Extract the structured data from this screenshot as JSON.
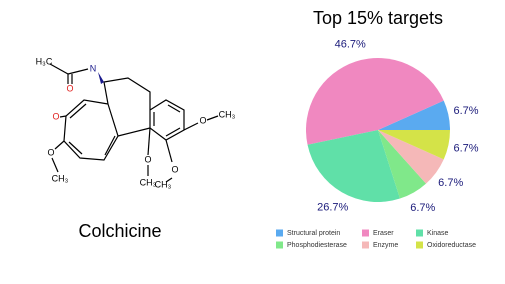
{
  "molecule": {
    "name": "Colchicine",
    "atom_labels": [
      "H₃C",
      "N",
      "O",
      "O",
      "O",
      "CH₃",
      "O",
      "CH₃",
      "O",
      "O",
      "CH₃",
      "CH₃"
    ]
  },
  "chart_data": {
    "type": "pie",
    "title": "Top 15% targets",
    "categories": [
      "Structural protein",
      "Eraser",
      "Kinase",
      "Phosphodiesterase",
      "Enzyme",
      "Oxidoreductase"
    ],
    "values": [
      6.7,
      46.7,
      26.7,
      6.7,
      6.7,
      6.7
    ],
    "value_labels": [
      "6.7%",
      "46.7%",
      "26.7%",
      "6.7%",
      "6.7%",
      "6.7%"
    ],
    "colors": [
      "#5aaaf0",
      "#f088c0",
      "#60e0a8",
      "#80e88a",
      "#f5b8b8",
      "#d4e348"
    ],
    "legend": "bottom"
  }
}
